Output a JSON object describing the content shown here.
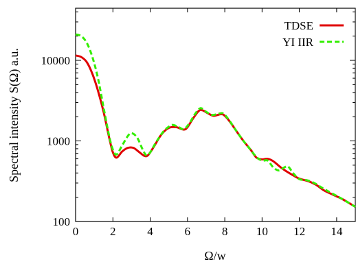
{
  "chart_data": {
    "type": "line",
    "xlabel": "Ω/w",
    "ylabel": "Spectral intensity S(Ω) a.u.",
    "xlim": [
      0,
      15
    ],
    "ylim": [
      100,
      50000
    ],
    "yscale": "log",
    "grid": false,
    "legend_position": "top-right",
    "x_ticks": [
      0,
      2,
      4,
      6,
      8,
      10,
      12,
      14
    ],
    "x_tick_labels": [
      "0",
      "2",
      "4",
      "6",
      "8",
      "10",
      "12",
      "14"
    ],
    "y_ticks": [
      100,
      1000,
      10000
    ],
    "y_tick_labels": [
      "100",
      "1000",
      "10000"
    ],
    "series": [
      {
        "name": "TDSE",
        "color": "#e00000",
        "dash": "solid",
        "points": [
          [
            0,
            11500
          ],
          [
            0.3,
            11000
          ],
          [
            0.6,
            9500
          ],
          [
            0.9,
            6800
          ],
          [
            1.2,
            4200
          ],
          [
            1.5,
            2300
          ],
          [
            1.8,
            1100
          ],
          [
            2.0,
            720
          ],
          [
            2.2,
            620
          ],
          [
            2.5,
            740
          ],
          [
            2.8,
            820
          ],
          [
            3.1,
            820
          ],
          [
            3.4,
            730
          ],
          [
            3.7,
            650
          ],
          [
            3.9,
            670
          ],
          [
            4.2,
            850
          ],
          [
            4.6,
            1200
          ],
          [
            5.0,
            1450
          ],
          [
            5.4,
            1480
          ],
          [
            5.8,
            1380
          ],
          [
            6.0,
            1480
          ],
          [
            6.3,
            1900
          ],
          [
            6.6,
            2350
          ],
          [
            6.8,
            2400
          ],
          [
            7.1,
            2200
          ],
          [
            7.4,
            2050
          ],
          [
            7.8,
            2150
          ],
          [
            8.0,
            2050
          ],
          [
            8.3,
            1700
          ],
          [
            8.7,
            1250
          ],
          [
            9.0,
            1000
          ],
          [
            9.4,
            770
          ],
          [
            9.7,
            620
          ],
          [
            10.0,
            590
          ],
          [
            10.3,
            600
          ],
          [
            10.6,
            560
          ],
          [
            11.0,
            470
          ],
          [
            11.3,
            420
          ],
          [
            11.7,
            370
          ],
          [
            12.0,
            340
          ],
          [
            12.5,
            315
          ],
          [
            12.9,
            285
          ],
          [
            13.3,
            245
          ],
          [
            13.8,
            215
          ],
          [
            14.3,
            190
          ],
          [
            15.0,
            152
          ]
        ]
      },
      {
        "name": "YI IIR",
        "color": "#33ee00",
        "dash": "dashed",
        "points": [
          [
            0,
            21000
          ],
          [
            0.3,
            20000
          ],
          [
            0.6,
            16500
          ],
          [
            0.9,
            11000
          ],
          [
            1.2,
            6000
          ],
          [
            1.5,
            2600
          ],
          [
            1.8,
            1150
          ],
          [
            2.0,
            780
          ],
          [
            2.2,
            680
          ],
          [
            2.5,
            880
          ],
          [
            2.8,
            1150
          ],
          [
            3.0,
            1250
          ],
          [
            3.3,
            1100
          ],
          [
            3.6,
            780
          ],
          [
            3.8,
            660
          ],
          [
            4.0,
            720
          ],
          [
            4.3,
            950
          ],
          [
            4.7,
            1300
          ],
          [
            5.0,
            1500
          ],
          [
            5.2,
            1580
          ],
          [
            5.5,
            1500
          ],
          [
            5.8,
            1400
          ],
          [
            6.1,
            1650
          ],
          [
            6.4,
            2150
          ],
          [
            6.7,
            2550
          ],
          [
            7.0,
            2300
          ],
          [
            7.3,
            2100
          ],
          [
            7.6,
            2150
          ],
          [
            7.9,
            2200
          ],
          [
            8.2,
            1850
          ],
          [
            8.6,
            1350
          ],
          [
            9.0,
            1000
          ],
          [
            9.3,
            820
          ],
          [
            9.7,
            630
          ],
          [
            10.0,
            570
          ],
          [
            10.3,
            570
          ],
          [
            10.6,
            470
          ],
          [
            10.9,
            430
          ],
          [
            11.2,
            470
          ],
          [
            11.4,
            480
          ],
          [
            11.7,
            390
          ],
          [
            12.0,
            335
          ],
          [
            12.4,
            325
          ],
          [
            12.8,
            300
          ],
          [
            13.3,
            255
          ],
          [
            13.8,
            220
          ],
          [
            14.3,
            190
          ],
          [
            15.0,
            152
          ]
        ]
      }
    ]
  }
}
